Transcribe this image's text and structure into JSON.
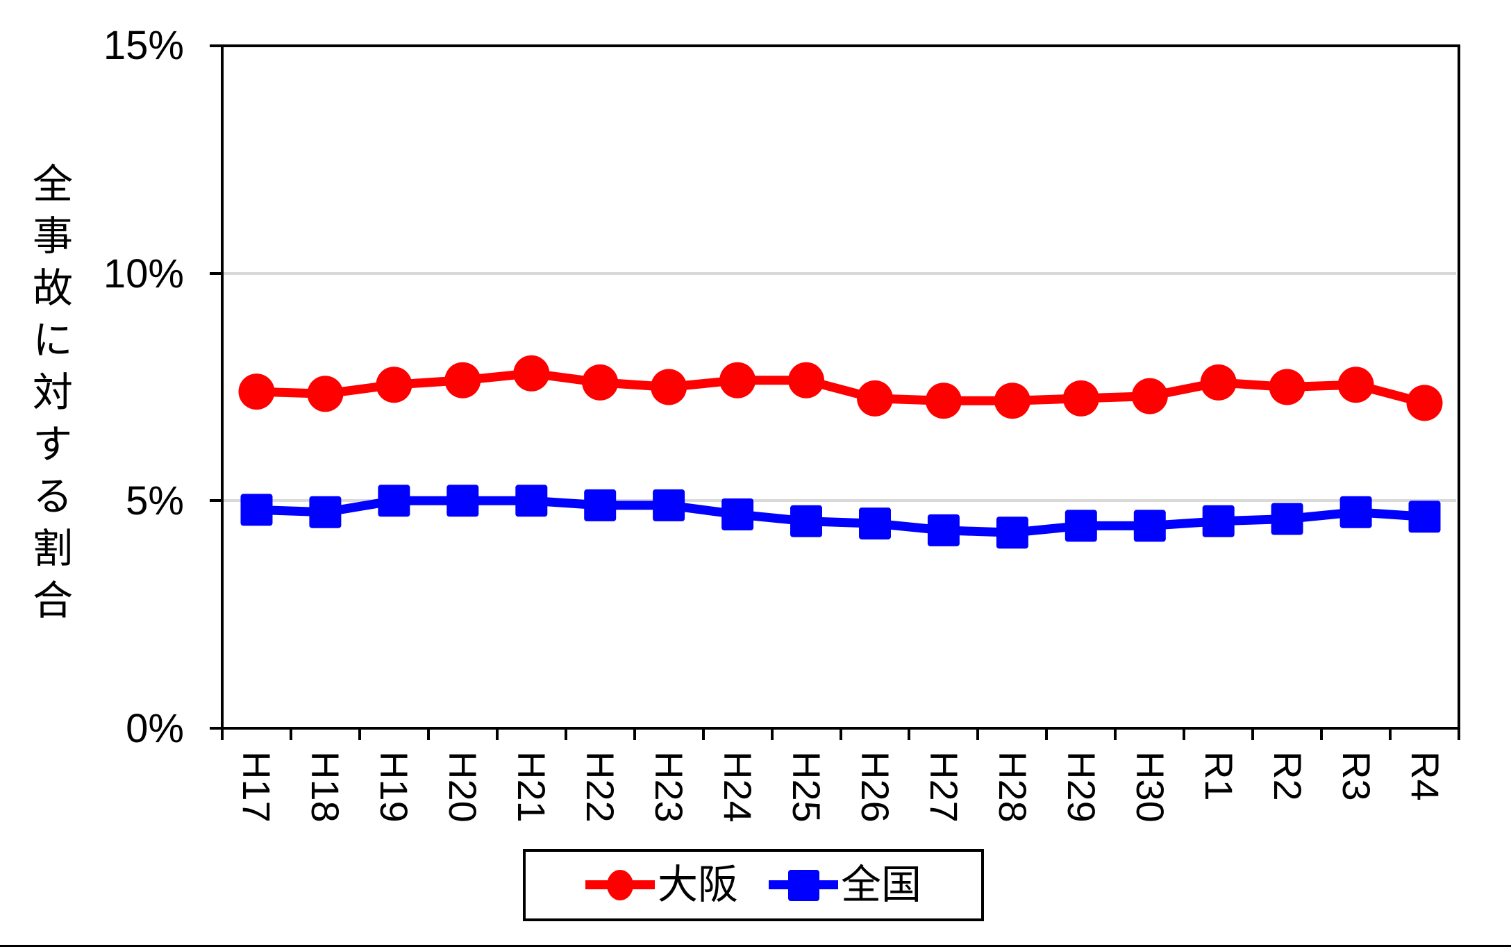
{
  "y_axis": {
    "title": "全事故に対する割合",
    "ticks": [
      "15%",
      "10%",
      "5%",
      "0%"
    ],
    "tick_values": [
      15,
      10,
      5,
      0
    ]
  },
  "x_axis": {
    "labels": [
      "H17",
      "H18",
      "H19",
      "H20",
      "H21",
      "H22",
      "H23",
      "H24",
      "H25",
      "H26",
      "H27",
      "H28",
      "H29",
      "H30",
      "R1",
      "R2",
      "R3",
      "R4"
    ]
  },
  "legend": {
    "items": [
      {
        "label": "大阪",
        "marker": "circle",
        "color": "#FF0000"
      },
      {
        "label": "全国",
        "marker": "square",
        "color": "#0000FF"
      }
    ]
  },
  "colors": {
    "osaka": "#FF0000",
    "zenkoku": "#0000FF",
    "gridline": "#D9D9D9",
    "axis": "#000000"
  },
  "chart_data": {
    "type": "line",
    "categories": [
      "H17",
      "H18",
      "H19",
      "H20",
      "H21",
      "H22",
      "H23",
      "H24",
      "H25",
      "H26",
      "H27",
      "H28",
      "H29",
      "H30",
      "R1",
      "R2",
      "R3",
      "R4"
    ],
    "series": [
      {
        "name": "大阪",
        "color": "#FF0000",
        "marker": "circle",
        "values": [
          7.4,
          7.35,
          7.55,
          7.65,
          7.8,
          7.6,
          7.5,
          7.65,
          7.65,
          7.25,
          7.2,
          7.2,
          7.25,
          7.3,
          7.6,
          7.5,
          7.55,
          7.15
        ]
      },
      {
        "name": "全国",
        "color": "#0000FF",
        "marker": "square",
        "values": [
          4.8,
          4.75,
          5.0,
          5.0,
          5.0,
          4.9,
          4.9,
          4.7,
          4.55,
          4.5,
          4.35,
          4.3,
          4.45,
          4.45,
          4.55,
          4.6,
          4.75,
          4.65
        ]
      }
    ],
    "title": "",
    "xlabel": "",
    "ylabel": "全事故に対する割合",
    "ylim": [
      0,
      15
    ],
    "y_tick_step": 5,
    "y_tick_format": "percent",
    "grid": "horizontal",
    "legend_position": "bottom"
  }
}
